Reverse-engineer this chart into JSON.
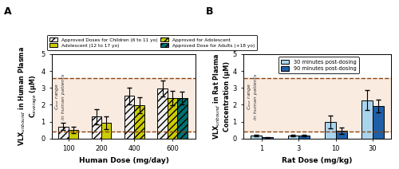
{
  "panel_A": {
    "doses": [
      100,
      200,
      400,
      600
    ],
    "children_mean": [
      0.72,
      1.3,
      2.52,
      2.95
    ],
    "children_sd": [
      0.2,
      0.45,
      0.5,
      0.48
    ],
    "adolescent_mean": [
      0.5,
      0.92,
      1.97,
      2.4
    ],
    "adolescent_sd": [
      0.18,
      0.38,
      0.48,
      0.42
    ],
    "adult_mean": [
      null,
      null,
      null,
      2.4
    ],
    "adult_sd": [
      null,
      null,
      null,
      0.38
    ],
    "children_color": "#f0f0f0",
    "adolescent_color": "#cccc00",
    "adult_color": "#007070",
    "hline_low": 0.4,
    "hline_high": 3.6,
    "shade_color": "#f5dcc8",
    "shade_alpha": 0.55,
    "ylim": [
      0,
      5
    ],
    "xlabel": "Human Dose (mg/day)",
    "ylabel_line1": "VLX$_{unbound}$ in Human Plasma",
    "ylabel_line2": "C$_{average}$ (μM)",
    "panel_label": "A",
    "legend_entries": [
      "Approved Doses for Children (6 to 11 yo)",
      "Adolescent (12 to 17 yo)",
      "Approved for Adolescent",
      "Approved Dose for Adults (+18 yo)"
    ]
  },
  "panel_B": {
    "doses": [
      1,
      3,
      10,
      30
    ],
    "min30_mean": [
      0.18,
      0.18,
      1.0,
      2.27
    ],
    "min30_sd": [
      0.05,
      0.05,
      0.38,
      0.6
    ],
    "min90_mean": [
      0.07,
      0.17,
      0.47,
      1.93
    ],
    "min90_sd": [
      0.03,
      0.05,
      0.18,
      0.38
    ],
    "color_30": "#aad4ed",
    "color_90": "#1e5fa8",
    "hline_low": 0.4,
    "hline_high": 3.6,
    "shade_color": "#f5dcc8",
    "shade_alpha": 0.55,
    "ylim": [
      0,
      5
    ],
    "xlabel": "Rat Dose (mg/kg)",
    "ylabel_line1": "VLX$_{unbound}$ in Rat Plasma",
    "ylabel_line2": "Concentration (μM)",
    "panel_label": "B",
    "legend_entries": [
      "30 minutes post-dosing",
      "90 minutes post-dosing"
    ]
  },
  "dashed_color": "#8B4513",
  "bar_width": 0.3,
  "figsize": [
    5.0,
    2.12
  ],
  "dpi": 100
}
